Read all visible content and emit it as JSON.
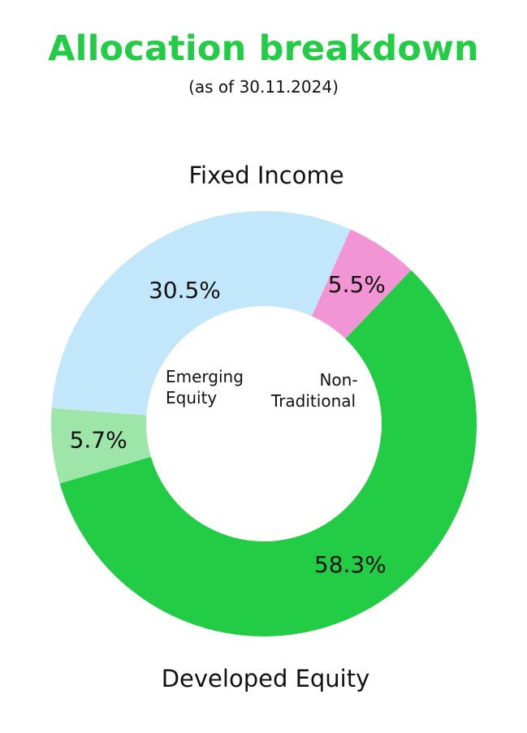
{
  "title": "Allocation breakdown",
  "subtitle": "(as of 30.11.2024)",
  "chart_data": {
    "type": "pie",
    "variant": "donut",
    "title": "Allocation breakdown",
    "subtitle": "(as of 30.11.2024)",
    "slices": [
      {
        "label": "Non-Traditional",
        "value": 5.5,
        "value_label": "5.5%",
        "color": "#f295d4"
      },
      {
        "label": "Developed Equity",
        "value": 58.3,
        "value_label": "58.3%",
        "color": "#22cc44"
      },
      {
        "label": "Emerging Equity",
        "value": 5.7,
        "value_label": "5.7%",
        "color": "#9de5a9"
      },
      {
        "label": "Fixed Income",
        "value": 30.5,
        "value_label": "30.5%",
        "color": "#c2e7fb"
      }
    ],
    "legend": "none"
  }
}
